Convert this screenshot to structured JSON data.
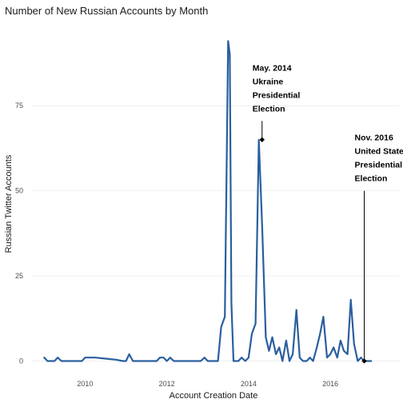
{
  "chart_data": {
    "type": "line",
    "title": "Number of New Russian Accounts by Month",
    "xlabel": "Account Creation Date",
    "ylabel": "Russian Twitter Accounts",
    "xlim": [
      2008.7,
      2017.7
    ],
    "ylim": [
      -2,
      99
    ],
    "x_ticks": [
      2010,
      2012,
      2014,
      2016
    ],
    "y_ticks": [
      0,
      25,
      50,
      75
    ],
    "grid": true,
    "legend": "none",
    "colors": {
      "line": "#2a5f9e",
      "annotation": "#000000",
      "grid": "#ebebeb"
    },
    "series": [
      {
        "x": [
          2009.0,
          2009.08,
          2009.17,
          2009.25,
          2009.33,
          2009.42,
          2009.5,
          2009.58,
          2009.67,
          2009.75,
          2009.83,
          2009.92,
          2010.0,
          2010.08,
          2010.25,
          2010.5,
          2010.75,
          2010.92,
          2011.0,
          2011.08,
          2011.17,
          2011.25,
          2011.5,
          2011.75,
          2011.83,
          2011.92,
          2012.0,
          2012.08,
          2012.17,
          2012.25,
          2012.33,
          2012.5,
          2012.75,
          2012.83,
          2012.92,
          2013.0,
          2013.08,
          2013.17,
          2013.25,
          2013.33,
          2013.42,
          2013.5,
          2013.54,
          2013.58,
          2013.63,
          2013.67,
          2013.75,
          2013.83,
          2013.92,
          2014.0,
          2014.08,
          2014.17,
          2014.25,
          2014.33,
          2014.42,
          2014.5,
          2014.58,
          2014.67,
          2014.75,
          2014.83,
          2014.92,
          2015.0,
          2015.08,
          2015.17,
          2015.25,
          2015.33,
          2015.42,
          2015.5,
          2015.58,
          2015.67,
          2015.75,
          2015.83,
          2015.92,
          2016.0,
          2016.08,
          2016.17,
          2016.25,
          2016.33,
          2016.42,
          2016.5,
          2016.58,
          2016.67,
          2016.75,
          2016.83,
          2016.92,
          2017.0
        ],
        "y": [
          1,
          0,
          0,
          0,
          1,
          0,
          0,
          0,
          0,
          0,
          0,
          0,
          1,
          1,
          1,
          0.7,
          0.4,
          0,
          0,
          2,
          0,
          0,
          0,
          0,
          1,
          1,
          0,
          1,
          0,
          0,
          0,
          0,
          0,
          0,
          1,
          0,
          0,
          0,
          0,
          10,
          13,
          94,
          90,
          17,
          0,
          0,
          0,
          1,
          0,
          1,
          8,
          11,
          65,
          40,
          7,
          3,
          7,
          2,
          4,
          0,
          6,
          0,
          2,
          15,
          1,
          0,
          0,
          1,
          0,
          4,
          8,
          13,
          1,
          2,
          4,
          1,
          6,
          3,
          2,
          18,
          5,
          0,
          1,
          0,
          0,
          0
        ]
      }
    ],
    "annotations": [
      {
        "lines": [
          "May. 2014",
          "Ukraine",
          "Presidential",
          "Election"
        ],
        "x": 2014.33,
        "y": 65,
        "y_top": 70.5
      },
      {
        "lines": [
          "Nov. 2016",
          "United States",
          "Presidential",
          "Election"
        ],
        "x": 2016.83,
        "y": 0,
        "y_top": 50
      }
    ]
  }
}
